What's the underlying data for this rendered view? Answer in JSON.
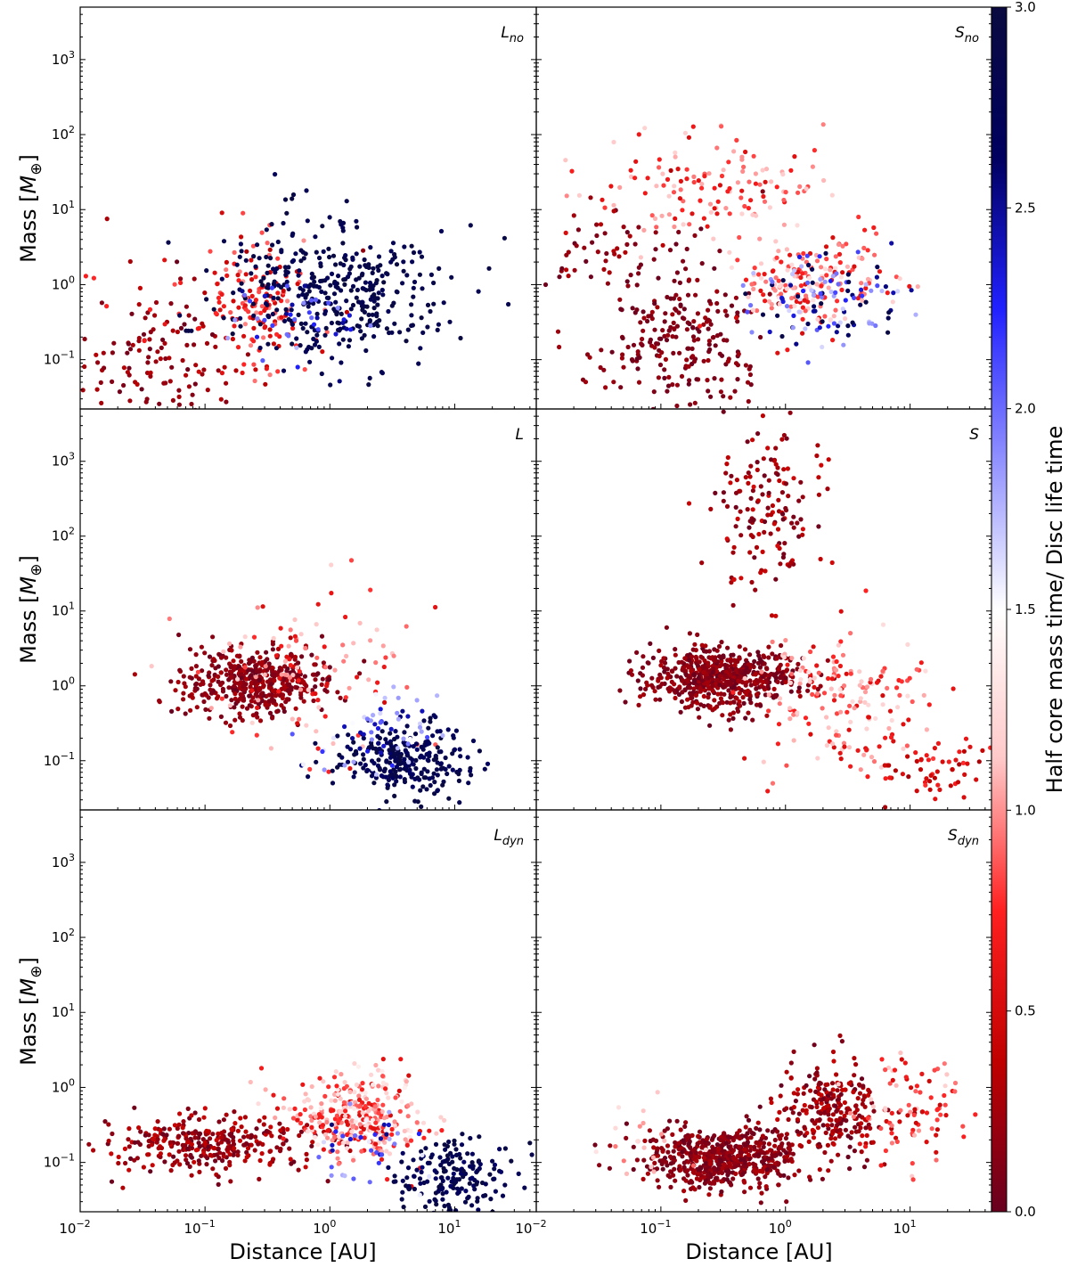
{
  "figure": {
    "ylabel_prefix": "Mass [",
    "ylabel_symbol": "M",
    "ylabel_subscript": "⊕",
    "ylabel_suffix": "]",
    "xlabel": "Distance [AU]",
    "colorbar_label": "Half core mass time/ Disc life time",
    "colorbar_ticks": [
      "0.0",
      "0.5",
      "1.0",
      "1.5",
      "2.0",
      "2.5",
      "3.0"
    ],
    "colorbar_range": [
      0,
      3
    ],
    "colormap": [
      "#67001f",
      "#c00000",
      "#ff2020",
      "#ffc8c8",
      "#ffffff",
      "#9090ff",
      "#2020ff",
      "#000060",
      "#0a0a40"
    ],
    "x_ticks": {
      "base": "10",
      "exps": [
        "−2",
        "−1",
        "0",
        "1"
      ]
    },
    "y_ticks": {
      "base": "10",
      "exps": [
        "−1",
        "0",
        "1",
        "2",
        "3"
      ]
    },
    "xscale": "log",
    "yscale": "log",
    "xlim": [
      0.01,
      45
    ],
    "ylim": [
      0.022,
      5000
    ]
  },
  "chart_data": [
    {
      "type": "scatter",
      "panel": "L_no",
      "label_main": "L",
      "label_sub": "no",
      "clusters": [
        {
          "desc": "inner dark red low",
          "n": 110,
          "logx": [
            -1.35,
            0.3
          ],
          "logy": [
            -1.0,
            0.45
          ],
          "c": [
            0.0,
            0.35
          ]
        },
        {
          "desc": "red bump",
          "n": 140,
          "logx": [
            -0.55,
            0.2
          ],
          "logy": [
            -0.25,
            0.4
          ],
          "c": [
            0.4,
            1.0
          ]
        },
        {
          "desc": "scatter high red",
          "n": 40,
          "logx": [
            -1.6,
            -0.6
          ],
          "logy": [
            0.0,
            0.55
          ],
          "c": [
            0.1,
            0.9
          ]
        },
        {
          "desc": "dark blue diagonal",
          "n": 380,
          "logx": [
            0.0,
            0.45
          ],
          "logy": [
            -0.1,
            0.45
          ],
          "c": [
            2.7,
            3.0
          ]
        },
        {
          "desc": "blue mixed",
          "n": 40,
          "logx": [
            -0.2,
            0.3
          ],
          "logy": [
            -0.5,
            0.3
          ],
          "c": [
            1.6,
            2.6
          ]
        }
      ]
    },
    {
      "type": "scatter",
      "panel": "S_no",
      "label_main": "S",
      "label_sub": "no",
      "clusters": [
        {
          "desc": "dark red blob",
          "n": 220,
          "logx": [
            -0.85,
            0.35
          ],
          "logy": [
            -0.7,
            0.45
          ],
          "c": [
            0.0,
            0.25
          ]
        },
        {
          "desc": "dark red upper",
          "n": 70,
          "logx": [
            -1.3,
            0.45
          ],
          "logy": [
            0.4,
            0.35
          ],
          "c": [
            0.0,
            0.35
          ]
        },
        {
          "desc": "red high",
          "n": 140,
          "logx": [
            -0.6,
            0.5
          ],
          "logy": [
            1.3,
            0.35
          ],
          "c": [
            0.5,
            1.2
          ]
        },
        {
          "desc": "red middle diagonal",
          "n": 180,
          "logx": [
            0.2,
            0.3
          ],
          "logy": [
            0.0,
            0.3
          ],
          "c": [
            0.5,
            1.3
          ]
        },
        {
          "desc": "blue mixed diagonal",
          "n": 110,
          "logx": [
            0.3,
            0.3
          ],
          "logy": [
            -0.2,
            0.3
          ],
          "c": [
            1.6,
            3.0
          ]
        }
      ]
    },
    {
      "type": "scatter",
      "panel": "L",
      "label_main": "L",
      "label_sub": "",
      "clusters": [
        {
          "desc": "dark red diagonal",
          "n": 480,
          "logx": [
            -0.6,
            0.3
          ],
          "logy": [
            0.05,
            0.22
          ],
          "c": [
            0.0,
            0.3
          ]
        },
        {
          "desc": "red scatter",
          "n": 110,
          "logx": [
            -0.2,
            0.5
          ],
          "logy": [
            0.1,
            0.5
          ],
          "c": [
            0.5,
            1.2
          ]
        },
        {
          "desc": "dark blue tail",
          "n": 260,
          "logx": [
            0.6,
            0.25
          ],
          "logy": [
            -1.0,
            0.25
          ],
          "c": [
            2.6,
            3.0
          ]
        },
        {
          "desc": "blue mixed",
          "n": 60,
          "logx": [
            0.4,
            0.25
          ],
          "logy": [
            -0.7,
            0.35
          ],
          "c": [
            1.5,
            2.6
          ]
        }
      ]
    },
    {
      "type": "scatter",
      "panel": "S",
      "label_main": "S",
      "label_sub": "",
      "clusters": [
        {
          "desc": "dark red diagonal",
          "n": 620,
          "logx": [
            -0.5,
            0.3
          ],
          "logy": [
            0.1,
            0.2
          ],
          "c": [
            0.0,
            0.3
          ]
        },
        {
          "desc": "dark red tower",
          "n": 150,
          "logx": [
            -0.15,
            0.2
          ],
          "logy": [
            2.4,
            0.5
          ],
          "c": [
            0.0,
            0.5
          ]
        },
        {
          "desc": "red scatter",
          "n": 180,
          "logx": [
            0.45,
            0.35
          ],
          "logy": [
            -0.2,
            0.45
          ],
          "c": [
            0.5,
            1.3
          ]
        },
        {
          "desc": "red far tail",
          "n": 60,
          "logx": [
            1.2,
            0.3
          ],
          "logy": [
            -1.1,
            0.2
          ],
          "c": [
            0.2,
            0.8
          ]
        }
      ]
    },
    {
      "type": "scatter",
      "panel": "L_dyn",
      "label_main": "L",
      "label_sub": "dyn",
      "clusters": [
        {
          "desc": "dark red band",
          "n": 330,
          "logx": [
            -0.95,
            0.4
          ],
          "logy": [
            -0.75,
            0.2
          ],
          "c": [
            0.0,
            0.45
          ]
        },
        {
          "desc": "red middle",
          "n": 330,
          "logx": [
            0.2,
            0.3
          ],
          "logy": [
            -0.35,
            0.3
          ],
          "c": [
            0.5,
            1.4
          ]
        },
        {
          "desc": "dark blue tail",
          "n": 180,
          "logx": [
            1.0,
            0.22
          ],
          "logy": [
            -1.2,
            0.25
          ],
          "c": [
            2.6,
            3.0
          ]
        },
        {
          "desc": "blue mixed",
          "n": 40,
          "logx": [
            0.35,
            0.25
          ],
          "logy": [
            -0.8,
            0.3
          ],
          "c": [
            1.5,
            2.6
          ]
        }
      ]
    },
    {
      "type": "scatter",
      "panel": "S_dyn",
      "label_main": "S",
      "label_sub": "dyn",
      "clusters": [
        {
          "desc": "dark red band",
          "n": 620,
          "logx": [
            -0.5,
            0.3
          ],
          "logy": [
            -0.95,
            0.2
          ],
          "c": [
            0.0,
            0.3
          ]
        },
        {
          "desc": "dark red rise",
          "n": 250,
          "logx": [
            0.4,
            0.2
          ],
          "logy": [
            -0.3,
            0.3
          ],
          "c": [
            0.0,
            0.45
          ]
        },
        {
          "desc": "red right cluster",
          "n": 90,
          "logx": [
            1.0,
            0.2
          ],
          "logy": [
            -0.3,
            0.35
          ],
          "c": [
            0.4,
            1.2
          ]
        },
        {
          "desc": "pink left",
          "n": 20,
          "logx": [
            -1.2,
            0.2
          ],
          "logy": [
            -0.7,
            0.25
          ],
          "c": [
            0.9,
            1.3
          ]
        }
      ]
    }
  ]
}
